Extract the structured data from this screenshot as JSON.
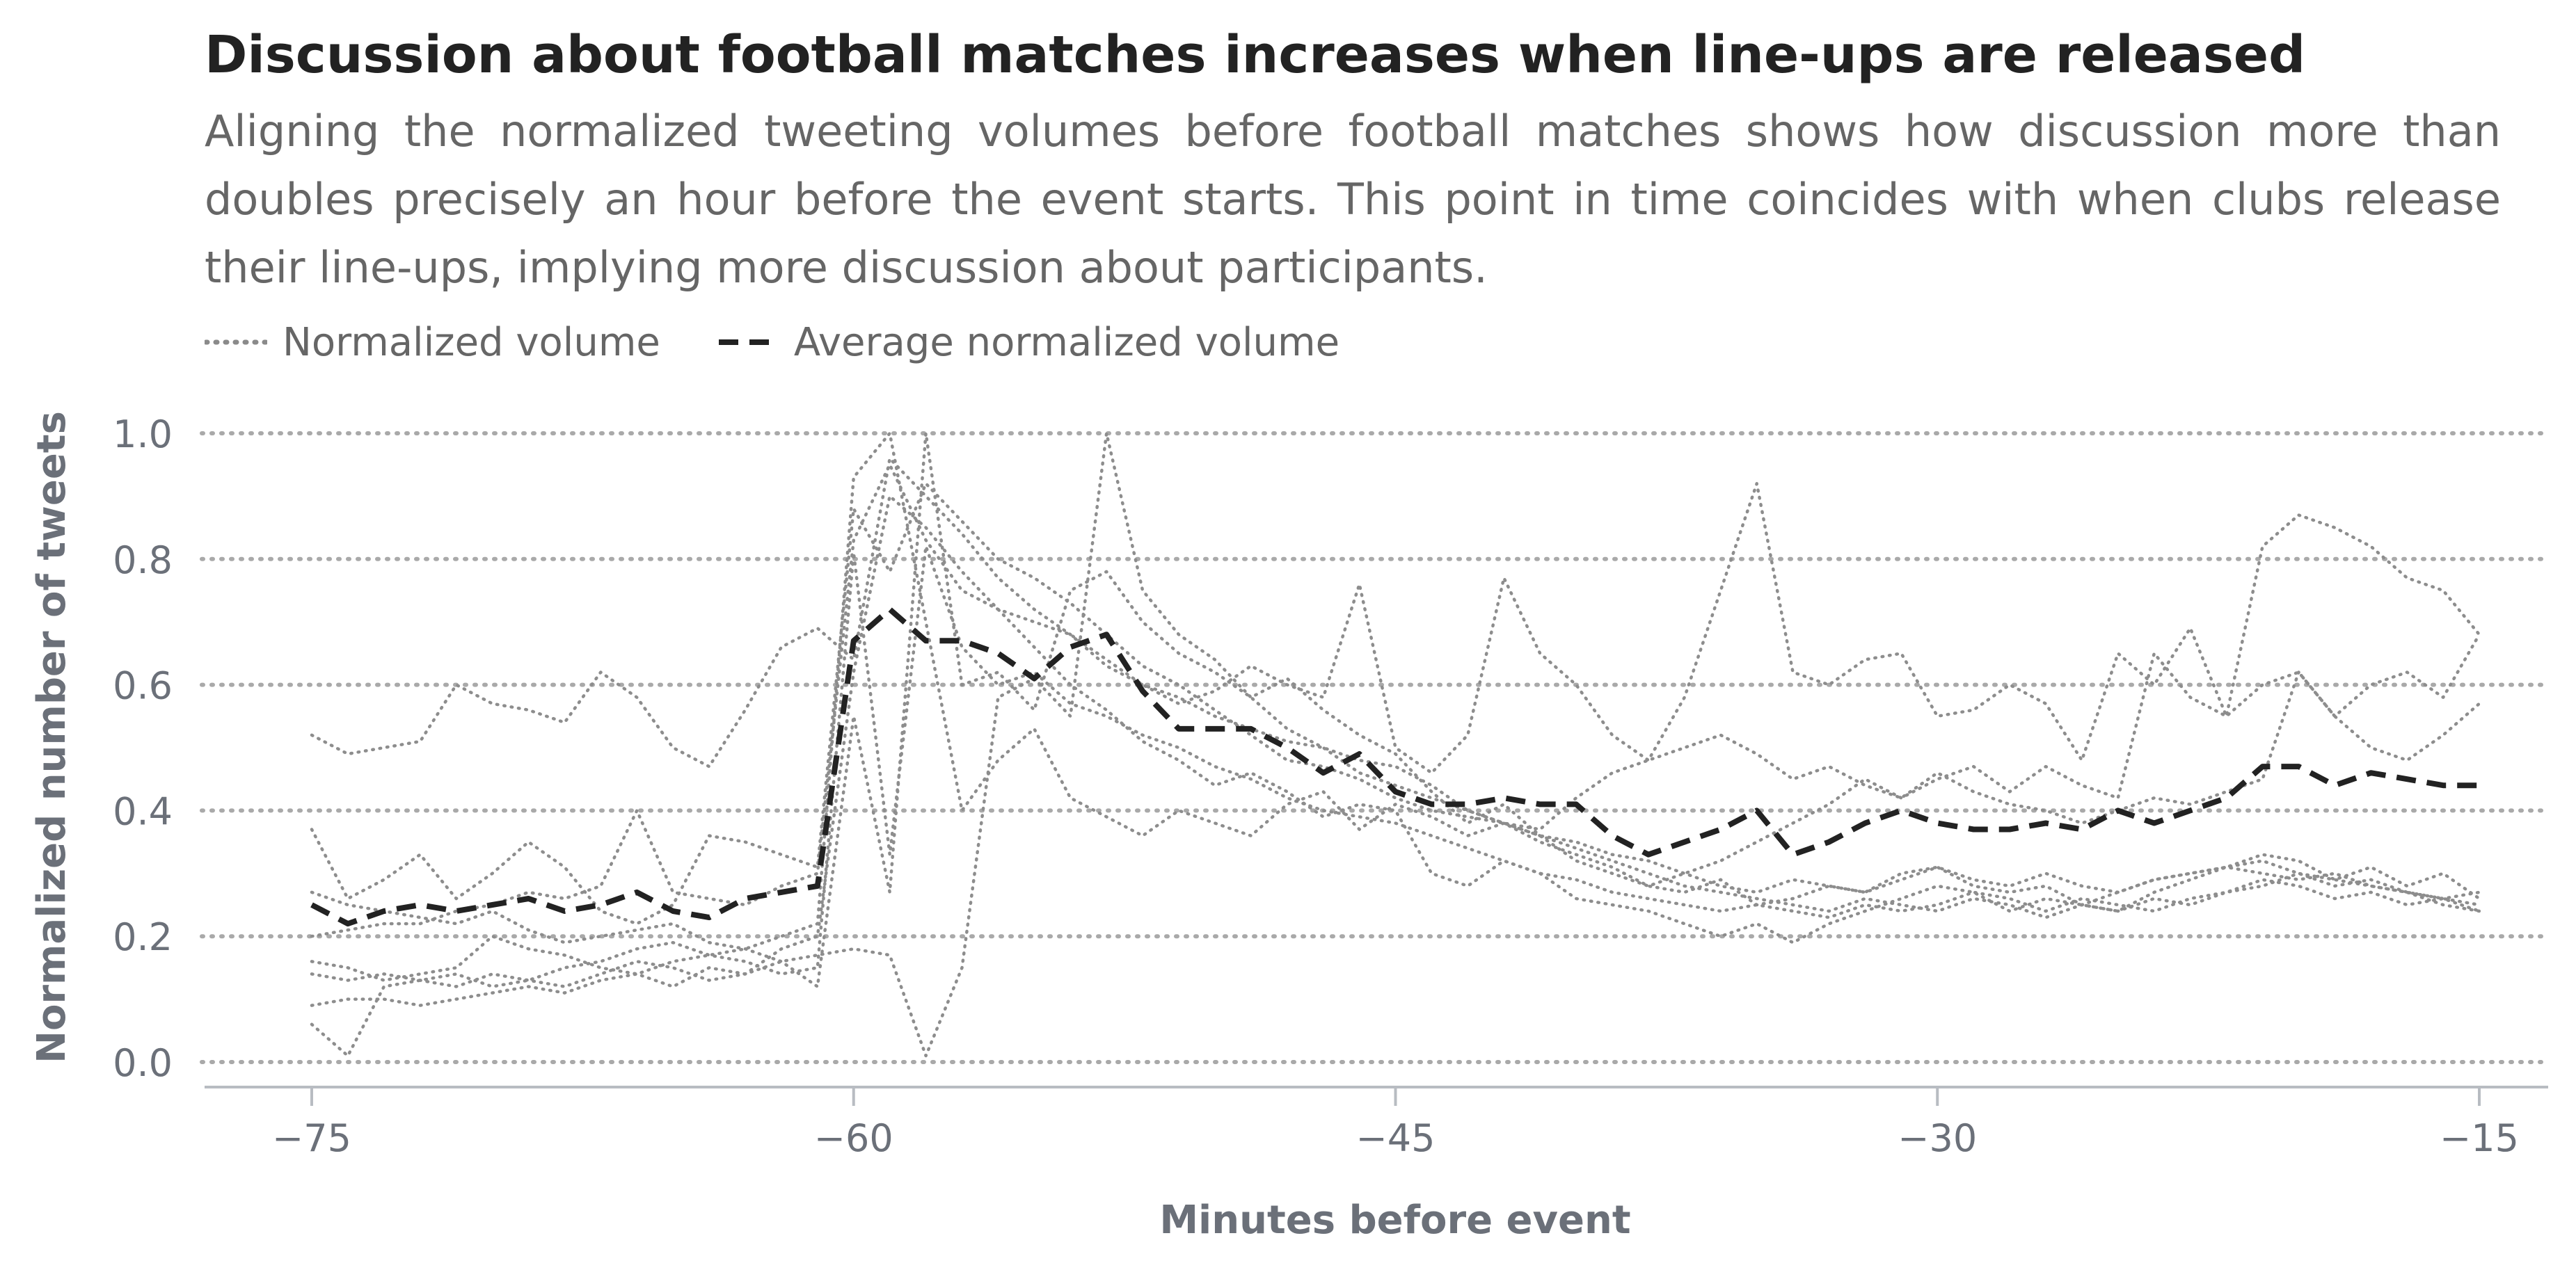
{
  "chart_data": {
    "type": "line",
    "title": "Discussion about football matches increases when line-ups are released",
    "subtitle": "Aligning the normalized tweeting volumes before football matches shows how discussion more than doubles precisely an hour before the event starts. This point in time coincides with when clubs release their line-ups, implying more discussion about participants.",
    "xlabel": "Minutes before event",
    "ylabel": "Normalized number of tweets",
    "xlim": [
      -78,
      -13
    ],
    "ylim": [
      0,
      1
    ],
    "xticks": [
      -75,
      -60,
      -45,
      -30,
      -15
    ],
    "xtick_labels": [
      "−75",
      "−60",
      "−45",
      "−30",
      "−15"
    ],
    "yticks": [
      0,
      0.2,
      0.4,
      0.6,
      0.8,
      1.0
    ],
    "ytick_labels": [
      "0.0",
      "0.2",
      "0.4",
      "0.6",
      "0.8",
      "1.0"
    ],
    "grid": "horizontal-dotted",
    "legend": [
      {
        "label": "Normalized volume",
        "style": "dotted",
        "color": "#8a8a8a"
      },
      {
        "label": "Average normalized volume",
        "style": "dashed",
        "color": "#222222"
      }
    ],
    "x": [
      -75,
      -74,
      -73,
      -72,
      -71,
      -70,
      -69,
      -68,
      -67,
      -66,
      -65,
      -64,
      -63,
      -62,
      -61,
      -60,
      -59,
      -58,
      -57,
      -56,
      -55,
      -54,
      -53,
      -52,
      -51,
      -50,
      -49,
      -48,
      -47,
      -46,
      -45,
      -44,
      -43,
      -42,
      -41,
      -40,
      -39,
      -38,
      -37,
      -36,
      -35,
      -34,
      -33,
      -32,
      -31,
      -30,
      -29,
      -28,
      -27,
      -26,
      -25,
      -24,
      -23,
      -22,
      -21,
      -20,
      -19,
      -18,
      -17,
      -16,
      -15
    ],
    "average": {
      "name": "Average normalized volume",
      "values": [
        0.25,
        0.22,
        0.24,
        0.25,
        0.24,
        0.25,
        0.26,
        0.24,
        0.25,
        0.27,
        0.24,
        0.23,
        0.26,
        0.27,
        0.28,
        0.67,
        0.72,
        0.67,
        0.67,
        0.65,
        0.61,
        0.66,
        0.68,
        0.59,
        0.53,
        0.53,
        0.53,
        0.5,
        0.46,
        0.49,
        0.43,
        0.41,
        0.41,
        0.42,
        0.41,
        0.41,
        0.36,
        0.33,
        0.35,
        0.37,
        0.4,
        0.33,
        0.35,
        0.38,
        0.4,
        0.38,
        0.37,
        0.37,
        0.38,
        0.37,
        0.4,
        0.38,
        0.4,
        0.42,
        0.47,
        0.47,
        0.44,
        0.46,
        0.45,
        0.44,
        0.44
      ]
    },
    "series": [
      {
        "name": "Normalized volume 1",
        "values": [
          0.52,
          0.49,
          0.5,
          0.51,
          0.6,
          0.57,
          0.56,
          0.54,
          0.62,
          0.58,
          0.5,
          0.47,
          0.56,
          0.66,
          0.69,
          0.64,
          0.96,
          0.9,
          0.84,
          0.77,
          0.72,
          0.68,
          0.63,
          0.6,
          0.58,
          0.55,
          0.53,
          0.51,
          0.5,
          0.48,
          0.47,
          0.44,
          0.4,
          0.38,
          0.37,
          0.42,
          0.46,
          0.48,
          0.5,
          0.52,
          0.49,
          0.45,
          0.47,
          0.44,
          0.42,
          0.46,
          0.43,
          0.41,
          0.4,
          0.38,
          0.4,
          0.42,
          0.41,
          0.43,
          0.45,
          0.62,
          0.55,
          0.5,
          0.48,
          0.52,
          0.57
        ]
      },
      {
        "name": "Normalized volume 2",
        "values": [
          0.37,
          0.26,
          0.29,
          0.33,
          0.26,
          0.3,
          0.35,
          0.31,
          0.24,
          0.22,
          0.25,
          0.36,
          0.35,
          0.33,
          0.31,
          0.88,
          0.78,
          0.92,
          0.86,
          0.8,
          0.77,
          0.73,
          0.68,
          0.63,
          0.6,
          0.56,
          0.52,
          0.48,
          0.47,
          0.45,
          0.42,
          0.4,
          0.39,
          0.38,
          0.36,
          0.35,
          0.33,
          0.32,
          0.3,
          0.28,
          0.27,
          0.29,
          0.28,
          0.27,
          0.3,
          0.31,
          0.29,
          0.28,
          0.3,
          0.28,
          0.27,
          0.29,
          0.3,
          0.31,
          0.3,
          0.29,
          0.3,
          0.28,
          0.27,
          0.26,
          0.25
        ]
      },
      {
        "name": "Normalized volume 3",
        "values": [
          0.16,
          0.15,
          0.13,
          0.14,
          0.15,
          0.2,
          0.18,
          0.17,
          0.15,
          0.14,
          0.16,
          0.17,
          0.18,
          0.2,
          0.22,
          0.93,
          1.0,
          0.7,
          0.4,
          0.48,
          0.53,
          0.42,
          0.39,
          0.36,
          0.4,
          0.38,
          0.36,
          0.41,
          0.43,
          0.37,
          0.41,
          0.39,
          0.36,
          0.38,
          0.35,
          0.33,
          0.31,
          0.28,
          0.27,
          0.29,
          0.25,
          0.26,
          0.28,
          0.27,
          0.29,
          0.31,
          0.28,
          0.27,
          0.28,
          0.25,
          0.27,
          0.29,
          0.3,
          0.31,
          0.33,
          0.32,
          0.29,
          0.31,
          0.28,
          0.3,
          0.26
        ]
      },
      {
        "name": "Normalized volume 4",
        "values": [
          0.27,
          0.25,
          0.24,
          0.23,
          0.22,
          0.24,
          0.21,
          0.19,
          0.2,
          0.21,
          0.22,
          0.19,
          0.18,
          0.16,
          0.12,
          0.55,
          0.27,
          1.0,
          0.6,
          0.62,
          0.56,
          0.75,
          0.78,
          0.7,
          0.65,
          0.62,
          0.58,
          0.53,
          0.5,
          0.46,
          0.44,
          0.42,
          0.4,
          0.38,
          0.36,
          0.34,
          0.32,
          0.3,
          0.28,
          0.27,
          0.26,
          0.25,
          0.24,
          0.26,
          0.25,
          0.24,
          0.26,
          0.25,
          0.23,
          0.25,
          0.24,
          0.26,
          0.25,
          0.27,
          0.28,
          0.3,
          0.29,
          0.28,
          0.27,
          0.25,
          0.24
        ]
      },
      {
        "name": "Normalized volume 5",
        "values": [
          0.09,
          0.1,
          0.1,
          0.09,
          0.1,
          0.11,
          0.12,
          0.11,
          0.13,
          0.14,
          0.12,
          0.15,
          0.14,
          0.16,
          0.17,
          0.18,
          0.17,
          0.01,
          0.15,
          0.58,
          0.61,
          0.55,
          1.0,
          0.75,
          0.68,
          0.64,
          0.58,
          0.61,
          0.56,
          0.52,
          0.49,
          0.43,
          0.38,
          0.41,
          0.36,
          0.32,
          0.3,
          0.28,
          0.3,
          0.32,
          0.35,
          0.38,
          0.41,
          0.45,
          0.42,
          0.45,
          0.47,
          0.43,
          0.47,
          0.44,
          0.42,
          0.65,
          0.58,
          0.55,
          0.6,
          0.62,
          0.55,
          0.6,
          0.62,
          0.58,
          0.68
        ]
      },
      {
        "name": "Normalized volume 6",
        "values": [
          0.06,
          0.01,
          0.12,
          0.13,
          0.14,
          0.12,
          0.13,
          0.15,
          0.16,
          0.18,
          0.19,
          0.17,
          0.16,
          0.14,
          0.15,
          0.81,
          0.33,
          0.82,
          0.66,
          0.6,
          0.62,
          0.57,
          0.55,
          0.52,
          0.5,
          0.47,
          0.45,
          0.42,
          0.4,
          0.39,
          0.38,
          0.36,
          0.34,
          0.32,
          0.3,
          0.29,
          0.27,
          0.26,
          0.25,
          0.24,
          0.25,
          0.24,
          0.23,
          0.25,
          0.24,
          0.25,
          0.27,
          0.26,
          0.24,
          0.26,
          0.25,
          0.24,
          0.26,
          0.27,
          0.29,
          0.28,
          0.26,
          0.27,
          0.25,
          0.26,
          0.24
        ]
      },
      {
        "name": "Normalized volume 7",
        "values": [
          0.14,
          0.13,
          0.14,
          0.13,
          0.12,
          0.14,
          0.13,
          0.12,
          0.14,
          0.16,
          0.15,
          0.13,
          0.14,
          0.18,
          0.2,
          0.62,
          0.9,
          0.85,
          0.78,
          0.72,
          0.66,
          0.6,
          0.56,
          0.51,
          0.48,
          0.44,
          0.46,
          0.43,
          0.39,
          0.41,
          0.4,
          0.3,
          0.28,
          0.32,
          0.3,
          0.26,
          0.25,
          0.24,
          0.22,
          0.2,
          0.22,
          0.19,
          0.22,
          0.24,
          0.26,
          0.28,
          0.27,
          0.24,
          0.26,
          0.25,
          0.24,
          0.27,
          0.29,
          0.31,
          0.32,
          0.3,
          0.28,
          0.29,
          0.27,
          0.26,
          0.27
        ]
      },
      {
        "name": "Normalized volume 8",
        "values": [
          0.2,
          0.21,
          0.22,
          0.22,
          0.24,
          0.25,
          0.27,
          0.26,
          0.28,
          0.4,
          0.27,
          0.26,
          0.25,
          0.28,
          0.3,
          0.83,
          0.95,
          0.83,
          0.75,
          0.72,
          0.7,
          0.68,
          0.64,
          0.6,
          0.57,
          0.59,
          0.63,
          0.6,
          0.58,
          0.76,
          0.5,
          0.46,
          0.52,
          0.77,
          0.65,
          0.6,
          0.52,
          0.48,
          0.58,
          0.75,
          0.92,
          0.62,
          0.6,
          0.64,
          0.65,
          0.55,
          0.56,
          0.6,
          0.57,
          0.48,
          0.65,
          0.6,
          0.69,
          0.55,
          0.82,
          0.87,
          0.85,
          0.82,
          0.77,
          0.75,
          0.68
        ]
      }
    ]
  }
}
